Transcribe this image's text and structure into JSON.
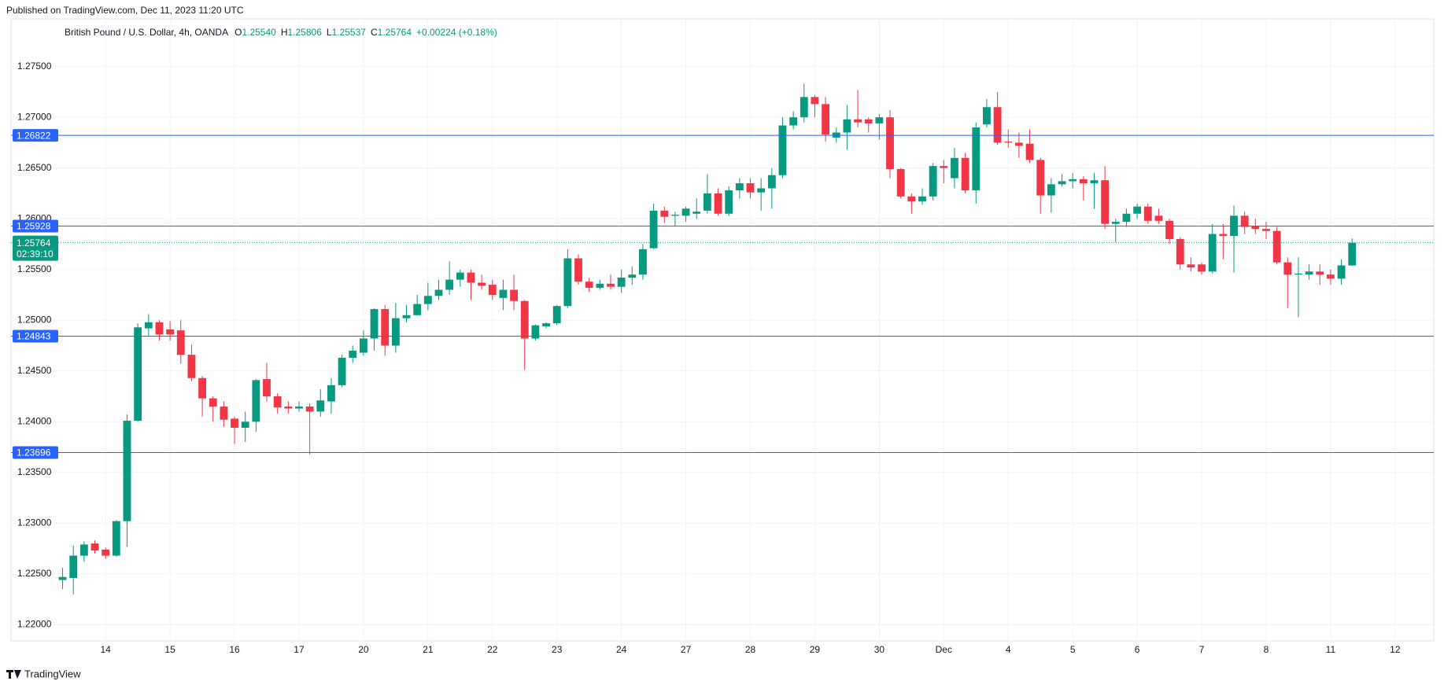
{
  "header": {
    "published": "Published on TradingView.com, Dec 11, 2023 11:20 UTC"
  },
  "footer": {
    "brand": "TradingView"
  },
  "chart_data": {
    "type": "candlestick",
    "legend": {
      "symbol": "British Pound / U.S. Dollar, 4h, OANDA",
      "ohlc": [
        {
          "label": "O",
          "value": "1.25540"
        },
        {
          "label": "H",
          "value": "1.25806"
        },
        {
          "label": "L",
          "value": "1.25537"
        },
        {
          "label": "C",
          "value": "1.25764"
        }
      ],
      "change": "+0.00224 (+0.18%)"
    },
    "open": [
      1.2244,
      1.2246,
      1.2268,
      1.228,
      1.2274,
      1.2268,
      1.2302,
      1.2401,
      1.2492,
      1.2498,
      1.2491,
      1.249,
      1.2466,
      1.2443,
      1.2423,
      1.2415,
      1.2403,
      1.2394,
      1.24,
      1.2442,
      1.2425,
      1.2415,
      1.2413,
      1.2415,
      1.241,
      1.242,
      1.2436,
      1.2463,
      1.2468,
      1.2482,
      1.2511,
      1.2475,
      1.2502,
      1.2505,
      1.2516,
      1.2524,
      1.253,
      1.254,
      1.2547,
      1.2537,
      1.2535,
      1.2522,
      1.253,
      1.2519,
      1.2482,
      1.2494,
      1.2497,
      1.2514,
      1.2561,
      1.2538,
      1.2532,
      1.2536,
      1.2533,
      1.2542,
      1.2545,
      1.2571,
      1.2608,
      1.2603,
      1.2603,
      1.2605,
      1.2608,
      1.2625,
      1.2605,
      1.2628,
      1.2635,
      1.2626,
      1.263,
      1.2643,
      1.2692,
      1.27,
      1.272,
      1.2713,
      1.268,
      1.2685,
      1.2698,
      1.2698,
      1.2694,
      1.27,
      1.2649,
      1.2622,
      1.2617,
      1.2622,
      1.2652,
      1.264,
      1.266,
      1.2628,
      1.2693,
      1.271,
      1.2676,
      1.2675,
      1.2674,
      1.2658,
      1.2623,
      1.2634,
      1.2637,
      1.2639,
      1.2635,
      1.2638,
      1.2595,
      1.2597,
      1.2605,
      1.2612,
      1.2603,
      1.2598,
      1.258,
      1.2555,
      1.2555,
      1.2548,
      1.2585,
      1.2583,
      1.2603,
      1.2593,
      1.259,
      1.2588,
      1.2557,
      1.2545,
      1.2545,
      1.2548,
      1.2545,
      1.2541,
      1.2554
    ],
    "high": [
      1.2256,
      1.2278,
      1.2282,
      1.2283,
      1.2276,
      1.2303,
      1.2407,
      1.2497,
      1.2506,
      1.25,
      1.2499,
      1.25,
      1.2476,
      1.2445,
      1.2425,
      1.242,
      1.2405,
      1.241,
      1.2442,
      1.2458,
      1.2428,
      1.242,
      1.242,
      1.2418,
      1.2432,
      1.2443,
      1.2466,
      1.2475,
      1.249,
      1.2512,
      1.2515,
      1.2517,
      1.2515,
      1.2525,
      1.2537,
      1.254,
      1.2558,
      1.255,
      1.255,
      1.2545,
      1.254,
      1.254,
      1.2545,
      1.252,
      1.2496,
      1.2498,
      1.2515,
      1.257,
      1.2565,
      1.2542,
      1.254,
      1.2545,
      1.255,
      1.2553,
      1.2575,
      1.2615,
      1.2612,
      1.2607,
      1.2612,
      1.262,
      1.2644,
      1.263,
      1.2632,
      1.264,
      1.264,
      1.264,
      1.265,
      1.27,
      1.2706,
      1.2733,
      1.2722,
      1.272,
      1.269,
      1.2712,
      1.2727,
      1.27,
      1.2703,
      1.2707,
      1.265,
      1.2625,
      1.263,
      1.2655,
      1.2658,
      1.267,
      1.2665,
      1.2695,
      1.2718,
      1.2725,
      1.2688,
      1.2685,
      1.2688,
      1.266,
      1.264,
      1.2644,
      1.2645,
      1.2642,
      1.2645,
      1.2652,
      1.26,
      1.261,
      1.2615,
      1.2615,
      1.261,
      1.26,
      1.2582,
      1.2562,
      1.2557,
      1.2595,
      1.2595,
      1.2613,
      1.2607,
      1.26,
      1.2597,
      1.2592,
      1.2562,
      1.2562,
      1.2555,
      1.2555,
      1.255,
      1.256,
      1.25806
    ],
    "low": [
      1.2235,
      1.223,
      1.2262,
      1.227,
      1.2265,
      1.2267,
      1.2277,
      1.24,
      1.2485,
      1.248,
      1.248,
      1.2457,
      1.244,
      1.2405,
      1.24,
      1.2395,
      1.2378,
      1.238,
      1.239,
      1.242,
      1.2408,
      1.2408,
      1.241,
      1.2368,
      1.2405,
      1.2408,
      1.2434,
      1.2458,
      1.2465,
      1.247,
      1.2465,
      1.2468,
      1.2498,
      1.2505,
      1.251,
      1.252,
      1.2525,
      1.2533,
      1.252,
      1.253,
      1.252,
      1.251,
      1.251,
      1.2451,
      1.248,
      1.2492,
      1.2495,
      1.2512,
      1.2535,
      1.2528,
      1.253,
      1.253,
      1.2527,
      1.2535,
      1.254,
      1.257,
      1.2596,
      1.2593,
      1.2597,
      1.26,
      1.2605,
      1.2603,
      1.2603,
      1.262,
      1.262,
      1.2608,
      1.261,
      1.264,
      1.2688,
      1.2695,
      1.27,
      1.2676,
      1.2675,
      1.2668,
      1.269,
      1.2685,
      1.2678,
      1.264,
      1.262,
      1.2605,
      1.2614,
      1.2618,
      1.2635,
      1.263,
      1.2625,
      1.2615,
      1.269,
      1.2673,
      1.267,
      1.266,
      1.2655,
      1.2605,
      1.2606,
      1.2632,
      1.263,
      1.2618,
      1.261,
      1.259,
      1.2577,
      1.2592,
      1.26,
      1.2595,
      1.2595,
      1.2575,
      1.255,
      1.2548,
      1.2545,
      1.2546,
      1.256,
      1.2547,
      1.2585,
      1.2585,
      1.258,
      1.2555,
      1.2512,
      1.2503,
      1.254,
      1.2535,
      1.2535,
      1.2535,
      1.25537
    ],
    "close": [
      1.2247,
      1.2268,
      1.2279,
      1.2273,
      1.2268,
      1.2302,
      1.2401,
      1.2493,
      1.2498,
      1.2486,
      1.2486,
      1.2466,
      1.2443,
      1.2423,
      1.2415,
      1.2402,
      1.2394,
      1.24,
      1.2441,
      1.2425,
      1.2414,
      1.2413,
      1.2415,
      1.241,
      1.2421,
      1.2436,
      1.2463,
      1.247,
      1.2482,
      1.2511,
      1.2475,
      1.2502,
      1.2505,
      1.2516,
      1.2524,
      1.253,
      1.254,
      1.2547,
      1.2537,
      1.2534,
      1.2525,
      1.253,
      1.2519,
      1.2482,
      1.2495,
      1.2497,
      1.2514,
      1.2561,
      1.2538,
      1.2532,
      1.2536,
      1.2533,
      1.2542,
      1.2545,
      1.257,
      1.2608,
      1.2602,
      1.2604,
      1.261,
      1.2607,
      1.2625,
      1.2605,
      1.2628,
      1.2635,
      1.2626,
      1.263,
      1.2643,
      1.2692,
      1.27,
      1.272,
      1.2713,
      1.2683,
      1.2685,
      1.2698,
      1.2695,
      1.2694,
      1.27,
      1.2649,
      1.2622,
      1.2617,
      1.2622,
      1.2652,
      1.265,
      1.266,
      1.2628,
      1.269,
      1.271,
      1.2675,
      1.2675,
      1.2672,
      1.2658,
      1.2623,
      1.2634,
      1.2637,
      1.2639,
      1.2635,
      1.2638,
      1.2595,
      1.2597,
      1.2605,
      1.2612,
      1.2598,
      1.2598,
      1.258,
      1.2555,
      1.2552,
      1.2548,
      1.2585,
      1.2583,
      1.2603,
      1.2592,
      1.259,
      1.2588,
      1.2557,
      1.2545,
      1.2546,
      1.2548,
      1.2545,
      1.2541,
      1.2554,
      1.25764
    ],
    "up_color": "#089981",
    "down_color": "#f23645",
    "xlim": [
      -4.8,
      127.6
    ],
    "xticks": [
      {
        "value": 4,
        "label": "14"
      },
      {
        "value": 10,
        "label": "15"
      },
      {
        "value": 16,
        "label": "16"
      },
      {
        "value": 22,
        "label": "17"
      },
      {
        "value": 28,
        "label": "20"
      },
      {
        "value": 34,
        "label": "21"
      },
      {
        "value": 40,
        "label": "22"
      },
      {
        "value": 46,
        "label": "23"
      },
      {
        "value": 52,
        "label": "24"
      },
      {
        "value": 58,
        "label": "27"
      },
      {
        "value": 64,
        "label": "28"
      },
      {
        "value": 70,
        "label": "29"
      },
      {
        "value": 76,
        "label": "30"
      },
      {
        "value": 82,
        "label": "Dec"
      },
      {
        "value": 88,
        "label": "4"
      },
      {
        "value": 94,
        "label": "5"
      },
      {
        "value": 100,
        "label": "6"
      },
      {
        "value": 106,
        "label": "7"
      },
      {
        "value": 112,
        "label": "8"
      },
      {
        "value": 118,
        "label": "11"
      },
      {
        "value": 124,
        "label": "12"
      }
    ],
    "ylim": [
      1.2184,
      1.2797
    ],
    "yticks": [
      {
        "value": 1.22,
        "label": "1.22000"
      },
      {
        "value": 1.225,
        "label": "1.22500"
      },
      {
        "value": 1.23,
        "label": "1.23000"
      },
      {
        "value": 1.235,
        "label": "1.23500"
      },
      {
        "value": 1.24,
        "label": "1.24000"
      },
      {
        "value": 1.245,
        "label": "1.24500"
      },
      {
        "value": 1.25,
        "label": "1.25000"
      },
      {
        "value": 1.255,
        "label": "1.25500"
      },
      {
        "value": 1.26,
        "label": "1.26000"
      },
      {
        "value": 1.265,
        "label": "1.26500"
      },
      {
        "value": 1.27,
        "label": "1.27000"
      },
      {
        "value": 1.275,
        "label": "1.27500"
      }
    ],
    "grid": true,
    "levels_color": "#2962ff",
    "levels": [
      {
        "value": 1.26822,
        "label": "1.26822"
      },
      {
        "value": 1.25928,
        "label": "1.25928"
      },
      {
        "value": 1.24843,
        "label": "1.24843"
      },
      {
        "value": 1.23696,
        "label": "1.23696"
      }
    ],
    "last": {
      "value": 1.25764,
      "label": "1.25764",
      "countdown": "02:39:10"
    }
  }
}
